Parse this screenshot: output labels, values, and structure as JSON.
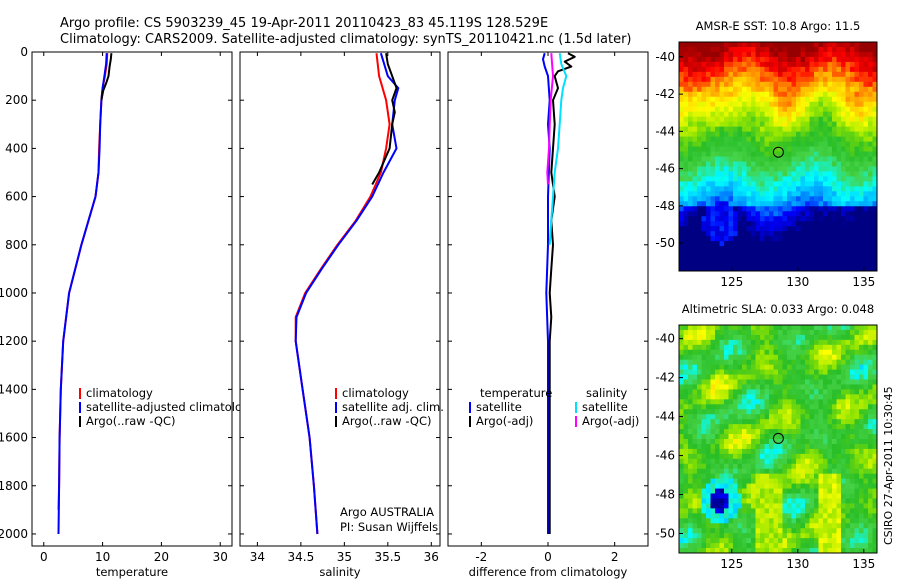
{
  "header": {
    "line1": "Argo profile: CS 5903239_45 19-Apr-2011 20110423_83 45.119S 128.529E",
    "line2": "Climatology: CARS2009. Satellite-adjusted climatology: synTS_20110421.nc (1.5d later)"
  },
  "colors": {
    "climatology": "#ff0000",
    "satellite": "#0000ff",
    "argo": "#000000",
    "sal_satellite": "#00e0ff",
    "sal_argo": "#ff00ff"
  },
  "stamp": "CSIRO 27-Apr-2011 10:30:45",
  "credits": {
    "org": "Argo AUSTRALIA",
    "pi": "PI: Susan Wijffels"
  },
  "chart_data": [
    {
      "id": "temperature",
      "type": "line",
      "xlabel": "temperature",
      "ylabel": "",
      "xlim": [
        -2,
        32
      ],
      "ylim": [
        2050,
        0
      ],
      "xticks": [
        "0",
        "10",
        "20",
        "30"
      ],
      "xtick_values": [
        0,
        10,
        20,
        30
      ],
      "yticks": [
        "0",
        "200",
        "400",
        "600",
        "800",
        "1000",
        "1200",
        "1400",
        "1600",
        "1800",
        "2000"
      ],
      "ytick_values": [
        0,
        200,
        400,
        600,
        800,
        1000,
        1200,
        1400,
        1600,
        1800,
        2000
      ],
      "legend": [
        {
          "label": "climatology",
          "color": "#ff0000"
        },
        {
          "label": "satellite-adjusted climatology",
          "color": "#0000ff"
        },
        {
          "label": "Argo(..raw -QC)",
          "color": "#000000"
        }
      ],
      "series": [
        {
          "name": "climatology",
          "color": "#ff0000",
          "depth": [
            5,
            50,
            100,
            150,
            200,
            300,
            400,
            500,
            600,
            800,
            1000,
            1200,
            1400,
            1600,
            1800,
            1900
          ],
          "values": [
            10.8,
            10.7,
            10.4,
            10.0,
            9.8,
            9.6,
            9.4,
            9.3,
            8.8,
            6.4,
            4.3,
            3.3,
            2.9,
            2.7,
            2.6,
            2.5
          ]
        },
        {
          "name": "satellite-adjusted climatology",
          "color": "#0000ff",
          "depth": [
            5,
            50,
            100,
            150,
            200,
            300,
            400,
            500,
            600,
            800,
            1000,
            1200,
            1400,
            1600,
            1800,
            2000
          ],
          "values": [
            10.7,
            10.6,
            10.3,
            10.0,
            9.8,
            9.6,
            9.5,
            9.3,
            8.8,
            6.4,
            4.3,
            3.3,
            2.9,
            2.7,
            2.6,
            2.5
          ]
        },
        {
          "name": "Argo(..raw -QC)",
          "color": "#000000",
          "depth": [
            5,
            30,
            60,
            100,
            130,
            160,
            200
          ],
          "values": [
            11.5,
            11.4,
            11.2,
            11.0,
            10.6,
            10.1,
            9.8
          ]
        }
      ]
    },
    {
      "id": "salinity",
      "type": "line",
      "xlabel": "salinity",
      "ylabel": "",
      "xlim": [
        33.8,
        36.1
      ],
      "ylim": [
        2050,
        0
      ],
      "xticks": [
        "34",
        "34.5",
        "35",
        "35.5",
        "36"
      ],
      "xtick_values": [
        34,
        34.5,
        35,
        35.5,
        36
      ],
      "legend": [
        {
          "label": "climatology",
          "color": "#ff0000"
        },
        {
          "label": "satellite adj. clim.",
          "color": "#0000ff"
        },
        {
          "label": "Argo(..raw -QC)",
          "color": "#000000"
        }
      ],
      "series": [
        {
          "name": "climatology",
          "color": "#ff0000",
          "depth": [
            5,
            100,
            200,
            300,
            400,
            500,
            600,
            700,
            800,
            900,
            1000,
            1100,
            1200,
            1400,
            1600,
            1800,
            2000
          ],
          "values": [
            35.37,
            35.4,
            35.48,
            35.52,
            35.48,
            35.42,
            35.3,
            35.13,
            34.92,
            34.73,
            34.55,
            34.44,
            34.44,
            34.52,
            34.6,
            34.65,
            34.69
          ]
        },
        {
          "name": "satellite adj. clim.",
          "color": "#0000ff",
          "depth": [
            5,
            100,
            150,
            200,
            300,
            400,
            500,
            600,
            700,
            800,
            900,
            1000,
            1100,
            1200,
            1400,
            1600,
            1800,
            2000
          ],
          "values": [
            35.42,
            35.5,
            35.62,
            35.58,
            35.55,
            35.6,
            35.45,
            35.32,
            35.14,
            34.93,
            34.74,
            34.56,
            34.45,
            34.44,
            34.52,
            34.6,
            34.65,
            34.69
          ]
        },
        {
          "name": "Argo(..raw -QC)",
          "color": "#000000",
          "depth": [
            5,
            50,
            100,
            150,
            200,
            250,
            300,
            400,
            500,
            550
          ],
          "values": [
            35.48,
            35.5,
            35.55,
            35.6,
            35.55,
            35.58,
            35.55,
            35.52,
            35.4,
            35.32
          ]
        }
      ]
    },
    {
      "id": "difference",
      "type": "line",
      "xlabel": "difference from climatology",
      "ylabel": "",
      "xlim": [
        -3,
        3
      ],
      "ylim": [
        2050,
        0
      ],
      "xticks": [
        "-2",
        "0",
        "2"
      ],
      "xtick_values": [
        -2,
        0,
        2
      ],
      "legend": [
        {
          "label": "temperature",
          "color": null
        },
        {
          "label": "satellite",
          "color": "#0000ff"
        },
        {
          "label": "Argo(-adj)",
          "color": "#000000"
        },
        {
          "label": "salinity",
          "color": null
        },
        {
          "label": "satellite",
          "color": "#00e0ff"
        },
        {
          "label": "Argo(-adj)",
          "color": "#ff00ff"
        }
      ],
      "series": [
        {
          "name": "temperature satellite",
          "color": "#0000ff",
          "depth": [
            5,
            30,
            60,
            100,
            200,
            300,
            400,
            600,
            800,
            1000,
            1200,
            1400,
            1600,
            1800,
            2000
          ],
          "values": [
            -0.1,
            -0.15,
            -0.1,
            0.0,
            0.05,
            0.0,
            0.05,
            0.0,
            0.0,
            -0.05,
            0.0,
            0.0,
            0.0,
            0.0,
            0.0
          ]
        },
        {
          "name": "temperature Argo(-adj)",
          "color": "#000000",
          "depth": [
            5,
            20,
            40,
            60,
            80,
            100,
            150,
            200,
            300,
            400,
            500,
            600,
            700,
            800,
            900,
            1000,
            1100,
            1200,
            1400,
            1600,
            1800,
            2000
          ],
          "values": [
            0.6,
            0.8,
            0.5,
            0.7,
            0.3,
            0.2,
            0.3,
            0.15,
            0.2,
            0.15,
            0.1,
            0.2,
            0.1,
            0.15,
            0.1,
            0.05,
            0.1,
            0.05,
            0.05,
            0.05,
            0.05,
            0.05
          ]
        },
        {
          "name": "salinity satellite",
          "color": "#00e0ff",
          "depth": [
            5,
            50,
            100,
            150,
            200,
            300,
            400,
            500,
            600,
            700,
            800
          ],
          "values": [
            0.35,
            0.4,
            0.55,
            0.45,
            0.4,
            0.35,
            0.3,
            0.2,
            0.15,
            0.1,
            0.05
          ]
        },
        {
          "name": "salinity Argo(-adj)",
          "color": "#ff00ff",
          "depth": [
            5,
            100,
            200,
            300,
            400,
            500,
            550
          ],
          "values": [
            0.1,
            0.15,
            0.08,
            0.05,
            0.03,
            -0.02,
            0.0
          ]
        }
      ]
    },
    {
      "id": "sst-map",
      "type": "heatmap",
      "title": "AMSR-E SST: 10.8 Argo: 11.5",
      "xlim": [
        121,
        136
      ],
      "ylim": [
        -51.5,
        -39.2
      ],
      "xticks": [
        "125",
        "130",
        "135"
      ],
      "xtick_values": [
        125,
        130,
        135
      ],
      "yticks": [
        "-40",
        "-42",
        "-44",
        "-46",
        "-48",
        "-50"
      ],
      "ytick_values": [
        -40,
        -42,
        -44,
        -46,
        -48,
        -50
      ],
      "marker": {
        "lon": 128.529,
        "lat": -45.119
      }
    },
    {
      "id": "sla-map",
      "type": "heatmap",
      "title": "Altimetric SLA: 0.033 Argo: 0.048",
      "xlim": [
        121,
        136
      ],
      "ylim": [
        -51,
        -39.3
      ],
      "xticks": [
        "125",
        "130",
        "135"
      ],
      "xtick_values": [
        125,
        130,
        135
      ],
      "yticks": [
        "-40",
        "-42",
        "-44",
        "-46",
        "-48",
        "-50"
      ],
      "ytick_values": [
        -40,
        -42,
        -44,
        -46,
        -48,
        -50
      ],
      "marker": {
        "lon": 128.529,
        "lat": -45.119
      }
    }
  ]
}
